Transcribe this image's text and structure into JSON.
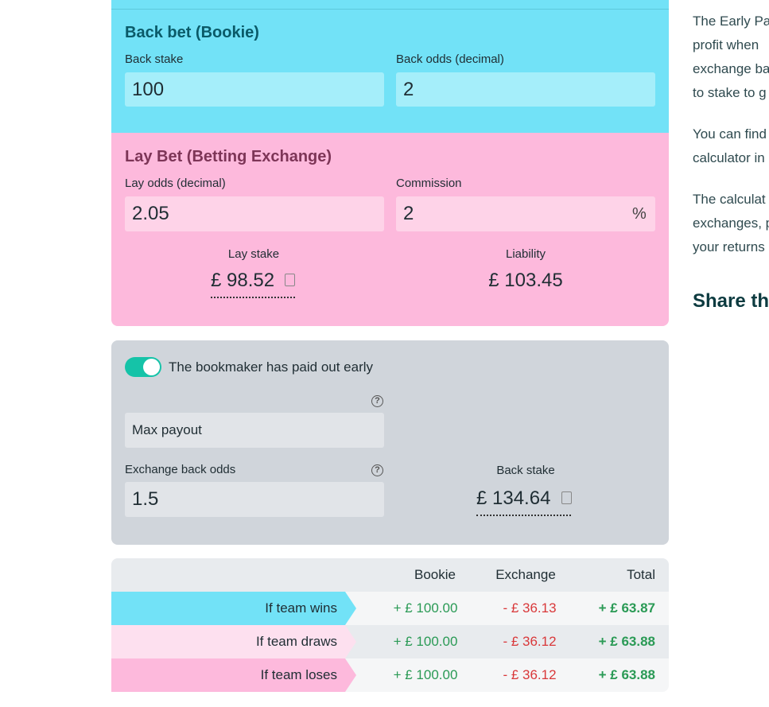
{
  "back_bet": {
    "title": "Back bet (Bookie)",
    "fields": [
      {
        "label": "Back stake",
        "value": "100"
      },
      {
        "label": "Back odds (decimal)",
        "value": "2"
      }
    ]
  },
  "lay_bet": {
    "title": "Lay Bet (Betting Exchange)",
    "fields": [
      {
        "label": "Lay odds (decimal)",
        "value": "2.05"
      },
      {
        "label": "Commission",
        "value": "2",
        "suffix": "%"
      }
    ],
    "results": [
      {
        "label": "Lay stake",
        "value": "£ 98.52"
      },
      {
        "label": "Liability",
        "value": "£ 103.45"
      }
    ]
  },
  "early_payout": {
    "toggle_label": "The bookmaker has paid out early",
    "select": "Max payout",
    "exchange_label": "Exchange back odds",
    "exchange_value": "1.5",
    "back_stake_label": "Back stake",
    "back_stake_value": "£ 134.64"
  },
  "table": {
    "columns": [
      "Bookie",
      "Exchange",
      "Total"
    ],
    "rows": [
      {
        "label": "If team wins",
        "bookie": "+ £ 100.00",
        "exchange": "- £ 36.13",
        "total": "+ £ 63.87"
      },
      {
        "label": "If team draws",
        "bookie": "+ £ 100.00",
        "exchange": "- £ 36.12",
        "total": "+ £ 63.88"
      },
      {
        "label": "If team loses",
        "bookie": "+ £ 100.00",
        "exchange": "- £ 36.12",
        "total": "+ £ 63.88"
      }
    ]
  },
  "sidebar": {
    "paragraphs": [
      [
        "The Early Pa",
        "profit when",
        "exchange ba",
        "to stake to g"
      ],
      [
        "You can find",
        "calculator in"
      ],
      [
        "The calculat",
        "exchanges, p",
        "your returns"
      ]
    ],
    "heading": "Share th"
  }
}
